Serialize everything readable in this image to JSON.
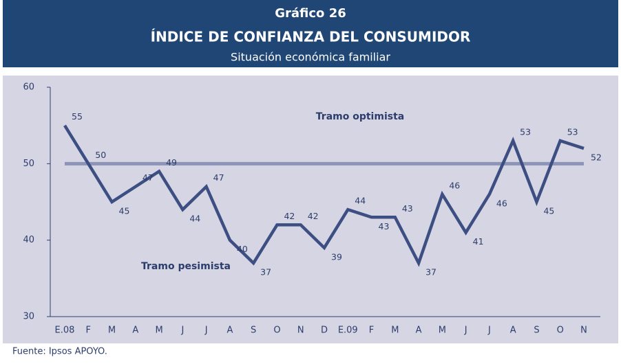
{
  "chart_data": {
    "type": "line",
    "title": "Gráfico 26",
    "subtitle": "ÍNDICE DE CONFIANZA DEL CONSUMIDOR",
    "caption": "Situación económica familiar",
    "source": "Fuente: Ipsos APOYO.",
    "categories": [
      "E.08",
      "F",
      "M",
      "A",
      "M",
      "J",
      "J",
      "A",
      "S",
      "O",
      "N",
      "D",
      "E.09",
      "F",
      "M",
      "A",
      "M",
      "J",
      "J",
      "A",
      "S",
      "O",
      "N"
    ],
    "series": [
      {
        "name": "Situación económica familiar",
        "color": "#3d4f82",
        "values": [
          55,
          50,
          45,
          47,
          49,
          44,
          47,
          40,
          37,
          42,
          42,
          39,
          44,
          43,
          43,
          37,
          46,
          41,
          46,
          53,
          45,
          53,
          52
        ]
      }
    ],
    "reference_line": {
      "value": 50,
      "color": "#8c94b8"
    },
    "annotations": [
      "Tramo optimista",
      "Tramo pesimista"
    ],
    "ylim": [
      30,
      60
    ],
    "yticks": [
      30,
      40,
      50,
      60
    ]
  }
}
